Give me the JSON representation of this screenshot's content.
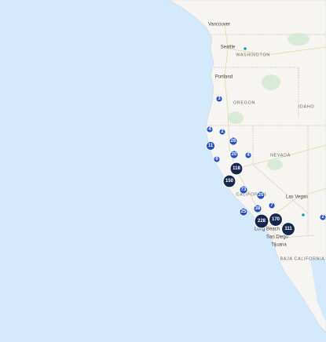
{
  "places": [
    {
      "name": "Vancouver"
    },
    {
      "name": "Seattle"
    },
    {
      "name": "WASHINGTON"
    },
    {
      "name": "Portland"
    },
    {
      "name": "OREGON"
    },
    {
      "name": "IDAHO"
    },
    {
      "name": "NEVADA"
    },
    {
      "name": "CALIFORNIA"
    },
    {
      "name": "Las Vegas"
    },
    {
      "name": "Long Beach"
    },
    {
      "name": "San Diego"
    },
    {
      "name": "Tijuana"
    },
    {
      "name": "BAJA CALIFORNIA"
    }
  ],
  "clusters": [
    {
      "count": 3
    },
    {
      "count": 4
    },
    {
      "count": 2
    },
    {
      "count": 26
    },
    {
      "count": 11
    },
    {
      "count": 20
    },
    {
      "count": 4
    },
    {
      "count": 6
    },
    {
      "count": 118
    },
    {
      "count": 150
    },
    {
      "count": 73
    },
    {
      "count": 20
    },
    {
      "count": 7
    },
    {
      "count": 38
    },
    {
      "count": 25
    },
    {
      "count": 228
    },
    {
      "count": 170
    },
    {
      "count": 111
    },
    {
      "count": 2
    }
  ]
}
